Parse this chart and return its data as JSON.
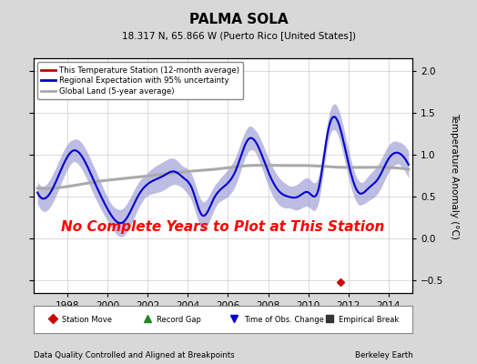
{
  "title": "PALMA SOLA",
  "subtitle": "18.317 N, 65.866 W (Puerto Rico [United States])",
  "ylabel": "Temperature Anomaly (°C)",
  "footer_left": "Data Quality Controlled and Aligned at Breakpoints",
  "footer_right": "Berkeley Earth",
  "xlim": [
    1996.3,
    2015.2
  ],
  "ylim": [
    -0.65,
    2.15
  ],
  "yticks": [
    -0.5,
    0.0,
    0.5,
    1.0,
    1.5,
    2.0
  ],
  "xticks": [
    1998,
    2000,
    2002,
    2004,
    2006,
    2008,
    2010,
    2012,
    2014
  ],
  "no_data_text": "No Complete Years to Plot at This Station",
  "station_move_x": 2011.6,
  "station_move_y": -0.52,
  "bg_color": "#d8d8d8",
  "plot_bg_color": "#ffffff",
  "regional_color": "#0000cc",
  "regional_fill_color": "#8888cc",
  "global_land_color": "#aaaaaa",
  "legend_items": [
    {
      "label": "This Temperature Station (12-month average)",
      "color": "#cc0000",
      "lw": 2
    },
    {
      "label": "Regional Expectation with 95% uncertainty",
      "color": "#0000cc",
      "lw": 2
    },
    {
      "label": "Global Land (5-year average)",
      "color": "#aaaaaa",
      "lw": 2
    }
  ],
  "bottom_legend": [
    {
      "label": "Station Move",
      "color": "#cc0000",
      "marker": "D"
    },
    {
      "label": "Record Gap",
      "color": "#228822",
      "marker": "^"
    },
    {
      "label": "Time of Obs. Change",
      "color": "#0000cc",
      "marker": "v"
    },
    {
      "label": "Empirical Break",
      "color": "#333333",
      "marker": "s"
    }
  ],
  "regional_knots_x": [
    1996.5,
    1997.5,
    1998.3,
    1999.2,
    2000.0,
    2000.8,
    2001.5,
    2002.0,
    2002.8,
    2003.3,
    2003.8,
    2004.2,
    2004.7,
    2005.3,
    2005.8,
    2006.4,
    2007.0,
    2007.5,
    2008.0,
    2008.6,
    2009.0,
    2009.5,
    2010.0,
    2010.5,
    2011.0,
    2011.5,
    2012.0,
    2012.5,
    2013.0,
    2013.5,
    2014.0,
    2014.5,
    2015.0
  ],
  "regional_knots_y": [
    0.55,
    0.72,
    1.05,
    0.75,
    0.35,
    0.2,
    0.5,
    0.65,
    0.75,
    0.8,
    0.72,
    0.6,
    0.28,
    0.48,
    0.62,
    0.82,
    1.18,
    1.1,
    0.8,
    0.55,
    0.5,
    0.5,
    0.55,
    0.58,
    1.3,
    1.38,
    0.9,
    0.55,
    0.6,
    0.72,
    0.95,
    1.02,
    0.88
  ],
  "global_knots_x": [
    1996.5,
    1998.0,
    1999.5,
    2001.0,
    2002.5,
    2004.0,
    2005.5,
    2007.0,
    2008.5,
    2010.0,
    2011.5,
    2013.0,
    2014.5
  ],
  "global_knots_y": [
    0.6,
    0.62,
    0.68,
    0.72,
    0.76,
    0.8,
    0.83,
    0.87,
    0.87,
    0.87,
    0.85,
    0.85,
    0.84
  ]
}
